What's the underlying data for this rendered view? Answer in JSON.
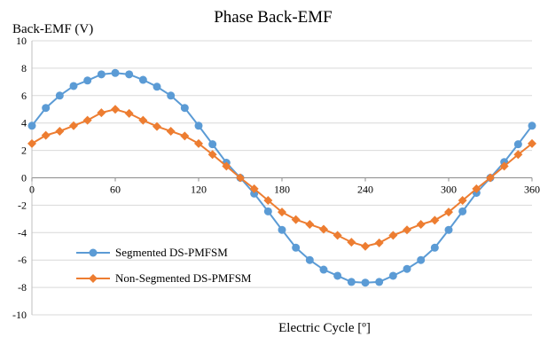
{
  "chart_data": {
    "type": "line",
    "title": "Phase Back-EMF",
    "xlabel": "Electric Cycle [º]",
    "ylabel": "Back-EMF (V)",
    "xlim": [
      0,
      360
    ],
    "ylim": [
      -10,
      10
    ],
    "x_ticks": [
      0,
      60,
      120,
      180,
      240,
      300,
      360
    ],
    "y_ticks": [
      -10,
      -8,
      -6,
      -4,
      -2,
      0,
      2,
      4,
      6,
      8,
      10
    ],
    "grid": "horizontal",
    "legend_position": "bottom-left",
    "x": [
      0,
      10,
      20,
      30,
      40,
      50,
      60,
      70,
      80,
      90,
      100,
      110,
      120,
      130,
      140,
      150,
      160,
      170,
      180,
      190,
      200,
      210,
      220,
      230,
      240,
      250,
      260,
      270,
      280,
      290,
      300,
      310,
      320,
      330,
      340,
      350,
      360
    ],
    "series": [
      {
        "name": "Segmented DS-PMFSM",
        "color": "#5b9bd5",
        "marker": "circle",
        "values": [
          3.8,
          5.1,
          6.0,
          6.7,
          7.1,
          7.55,
          7.65,
          7.55,
          7.15,
          6.65,
          6.0,
          5.1,
          3.8,
          2.45,
          1.1,
          0.0,
          -1.15,
          -2.45,
          -3.8,
          -5.1,
          -6.0,
          -6.7,
          -7.15,
          -7.6,
          -7.65,
          -7.6,
          -7.15,
          -6.65,
          -6.0,
          -5.1,
          -3.8,
          -2.45,
          -1.1,
          0.0,
          1.15,
          2.45,
          3.8
        ]
      },
      {
        "name": "Non-Segmented DS-PMFSM",
        "color": "#ed7d31",
        "marker": "diamond",
        "values": [
          2.5,
          3.1,
          3.4,
          3.8,
          4.2,
          4.75,
          5.0,
          4.7,
          4.2,
          3.75,
          3.4,
          3.05,
          2.5,
          1.7,
          0.85,
          0.0,
          -0.8,
          -1.65,
          -2.5,
          -3.05,
          -3.4,
          -3.75,
          -4.2,
          -4.7,
          -5.0,
          -4.75,
          -4.2,
          -3.8,
          -3.4,
          -3.1,
          -2.5,
          -1.65,
          -0.8,
          0.0,
          0.85,
          1.7,
          2.5
        ]
      }
    ]
  }
}
